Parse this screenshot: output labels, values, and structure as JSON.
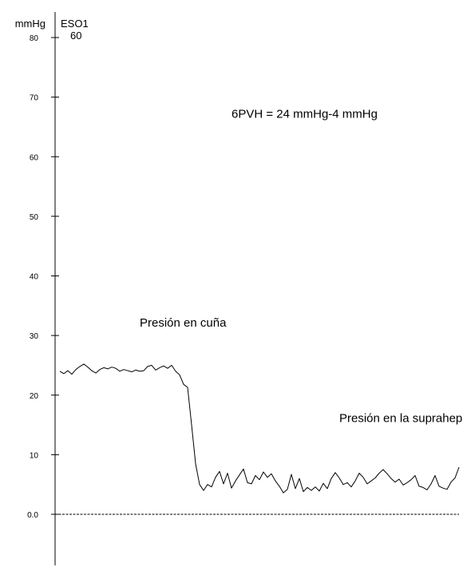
{
  "chart_data": {
    "type": "line",
    "title": "",
    "ylabel": "mmHg",
    "channel": {
      "name": "ESO1",
      "value": "60"
    },
    "ylim": [
      -15,
      85
    ],
    "y_ticks": [
      {
        "value": 80,
        "label": "80"
      },
      {
        "value": 70,
        "label": "70"
      },
      {
        "value": 60,
        "label": "60"
      },
      {
        "value": 50,
        "label": "50"
      },
      {
        "value": 40,
        "label": "40"
      },
      {
        "value": 30,
        "label": "30"
      },
      {
        "value": 20,
        "label": "20"
      },
      {
        "value": 10,
        "label": "10"
      },
      {
        "value": 0,
        "label": "0.0"
      }
    ],
    "baseline": 0,
    "xlim": [
      0,
      100
    ],
    "grid": false,
    "series": [
      {
        "values": [
          [
            0,
            24.0
          ],
          [
            1,
            23.6
          ],
          [
            2,
            24.1
          ],
          [
            3,
            23.5
          ],
          [
            4,
            24.3
          ],
          [
            5,
            24.8
          ],
          [
            6,
            25.2
          ],
          [
            7,
            24.7
          ],
          [
            8,
            24.1
          ],
          [
            9,
            23.7
          ],
          [
            10,
            24.3
          ],
          [
            11,
            24.6
          ],
          [
            12,
            24.4
          ],
          [
            13,
            24.7
          ],
          [
            14,
            24.5
          ],
          [
            15,
            24.0
          ],
          [
            16,
            24.3
          ],
          [
            17,
            24.1
          ],
          [
            18,
            23.9
          ],
          [
            19,
            24.2
          ],
          [
            20,
            24.0
          ],
          [
            21,
            24.1
          ],
          [
            22,
            24.8
          ],
          [
            23,
            25.0
          ],
          [
            24,
            24.2
          ],
          [
            25,
            24.6
          ],
          [
            26,
            24.9
          ],
          [
            27,
            24.5
          ],
          [
            28,
            25.0
          ],
          [
            29,
            24.0
          ],
          [
            30,
            23.4
          ],
          [
            31,
            21.8
          ],
          [
            32,
            21.3
          ],
          [
            33,
            15.0
          ],
          [
            34,
            8.5
          ],
          [
            35,
            5.0
          ],
          [
            36,
            4.0
          ],
          [
            37,
            5.0
          ],
          [
            38,
            4.6
          ],
          [
            39,
            6.2
          ],
          [
            40,
            7.2
          ],
          [
            41,
            5.1
          ],
          [
            42,
            6.9
          ],
          [
            43,
            4.4
          ],
          [
            44,
            5.6
          ],
          [
            45,
            6.6
          ],
          [
            46,
            7.6
          ],
          [
            47,
            5.3
          ],
          [
            48,
            5.1
          ],
          [
            49,
            6.5
          ],
          [
            50,
            5.8
          ],
          [
            51,
            7.1
          ],
          [
            52,
            6.2
          ],
          [
            53,
            6.8
          ],
          [
            54,
            5.6
          ],
          [
            55,
            4.7
          ],
          [
            56,
            3.6
          ],
          [
            57,
            4.2
          ],
          [
            58,
            6.7
          ],
          [
            59,
            4.3
          ],
          [
            60,
            6.0
          ],
          [
            61,
            3.8
          ],
          [
            62,
            4.5
          ],
          [
            63,
            4.0
          ],
          [
            64,
            4.6
          ],
          [
            65,
            3.9
          ],
          [
            66,
            5.2
          ],
          [
            67,
            4.3
          ],
          [
            68,
            6.0
          ],
          [
            69,
            7.0
          ],
          [
            70,
            6.1
          ],
          [
            71,
            5.0
          ],
          [
            72,
            5.3
          ],
          [
            73,
            4.6
          ],
          [
            74,
            5.6
          ],
          [
            75,
            6.9
          ],
          [
            76,
            6.2
          ],
          [
            77,
            5.1
          ],
          [
            78,
            5.6
          ],
          [
            79,
            6.1
          ],
          [
            80,
            6.9
          ],
          [
            81,
            7.5
          ],
          [
            82,
            6.8
          ],
          [
            83,
            6.0
          ],
          [
            84,
            5.4
          ],
          [
            85,
            5.9
          ],
          [
            86,
            4.9
          ],
          [
            87,
            5.3
          ],
          [
            88,
            5.8
          ],
          [
            89,
            6.5
          ],
          [
            90,
            4.7
          ],
          [
            91,
            4.5
          ],
          [
            92,
            4.1
          ],
          [
            93,
            5.1
          ],
          [
            94,
            6.5
          ],
          [
            95,
            4.7
          ],
          [
            96,
            4.4
          ],
          [
            97,
            4.2
          ],
          [
            98,
            5.4
          ],
          [
            99,
            6.1
          ],
          [
            100,
            7.9
          ]
        ]
      }
    ],
    "annotations": [
      {
        "text": "6PVH = 24 mmHg-4 mmHg",
        "x": 43,
        "y": 66.5
      },
      {
        "text": "Presión en cuña",
        "x": 20,
        "y": 31.5
      },
      {
        "text": "Presión en la suprahepática",
        "x": 70,
        "y": 15.5
      }
    ]
  }
}
